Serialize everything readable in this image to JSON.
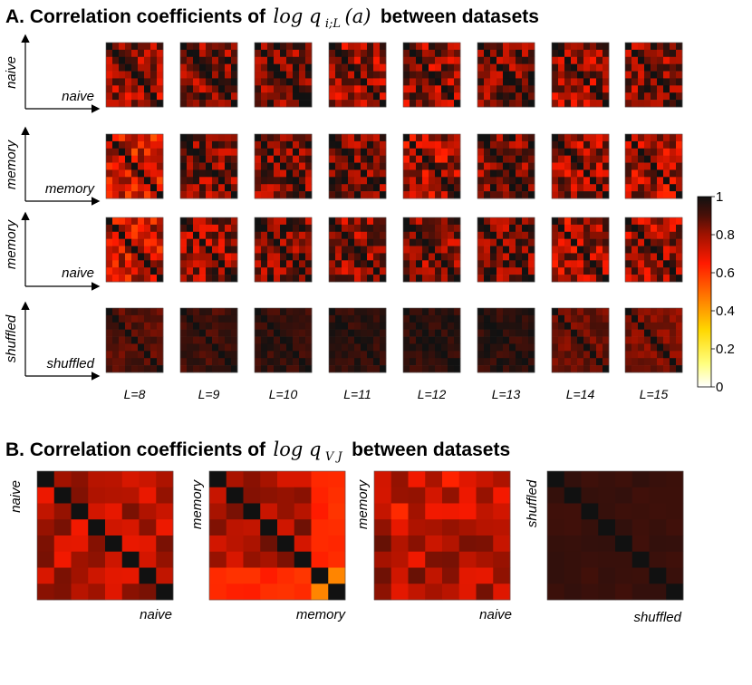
{
  "panel_a": {
    "title_prefix": "A. Correlation coefficients of",
    "title_math": "log q",
    "title_math_sub": "i;L",
    "title_math_arg": "(a)",
    "title_suffix": "between datasets",
    "rows": [
      {
        "ylabel": "naive",
        "xlabel": "naive"
      },
      {
        "ylabel": "memory",
        "xlabel": "memory"
      },
      {
        "ylabel": "memory",
        "xlabel": "naive"
      },
      {
        "ylabel": "shuffled",
        "xlabel": "shuffled"
      }
    ],
    "l_labels": [
      "L=8",
      "L=9",
      "L=10",
      "L=11",
      "L=12",
      "L=13",
      "L=14",
      "L=15"
    ]
  },
  "panel_b": {
    "title_prefix": "B. Correlation coefficients of",
    "title_math": "log q",
    "title_math_sub": "V J",
    "title_suffix": "between datasets",
    "maps": [
      {
        "ylabel": "naive",
        "xlabel": "naive"
      },
      {
        "ylabel": "memory",
        "xlabel": "memory"
      },
      {
        "ylabel": "memory",
        "xlabel": "naive"
      },
      {
        "ylabel": "shuffled",
        "xlabel": "shuffled"
      }
    ]
  },
  "colorbar": {
    "ticks": [
      "0",
      "0.2",
      "0.4",
      "0.6",
      "0.8",
      "1"
    ],
    "range": [
      0,
      1
    ]
  },
  "chart_data": {
    "type": "heatmap",
    "title": "Correlation coefficients between datasets",
    "colormap_range": [
      0,
      1
    ],
    "panel_a_grid": {
      "rows": [
        "naive vs naive",
        "memory vs memory",
        "memory vs naive",
        "shuffled vs shuffled"
      ],
      "columns": [
        "L=8",
        "L=9",
        "L=10",
        "L=11",
        "L=12",
        "L=13",
        "L=14",
        "L=15"
      ],
      "matrix_size": 9,
      "mean_offdiagonal": [
        [
          0.8,
          0.85,
          0.86,
          0.8,
          0.81,
          0.86,
          0.81,
          0.83
        ],
        [
          0.7,
          0.84,
          0.86,
          0.86,
          0.78,
          0.86,
          0.8,
          0.77
        ],
        [
          0.73,
          0.82,
          0.84,
          0.83,
          0.84,
          0.86,
          0.78,
          0.8
        ],
        [
          0.89,
          0.92,
          0.94,
          0.95,
          0.95,
          0.95,
          0.86,
          0.84
        ]
      ],
      "diagonal": 1.0
    },
    "panel_b": [
      {
        "name": "naive vs naive",
        "size": 8,
        "mean_offdiagonal": 0.76,
        "diagonal": 1.0
      },
      {
        "name": "memory vs memory",
        "size": 8,
        "mean_offdiagonal": 0.78,
        "diagonal": 1.0,
        "low_block_value": 0.62,
        "min_value": 0.45
      },
      {
        "name": "memory vs naive",
        "size": 8,
        "mean_offdiagonal": 0.72
      },
      {
        "name": "shuffled vs shuffled",
        "size": 8,
        "mean_offdiagonal": 0.93,
        "diagonal": 1.0
      }
    ]
  }
}
